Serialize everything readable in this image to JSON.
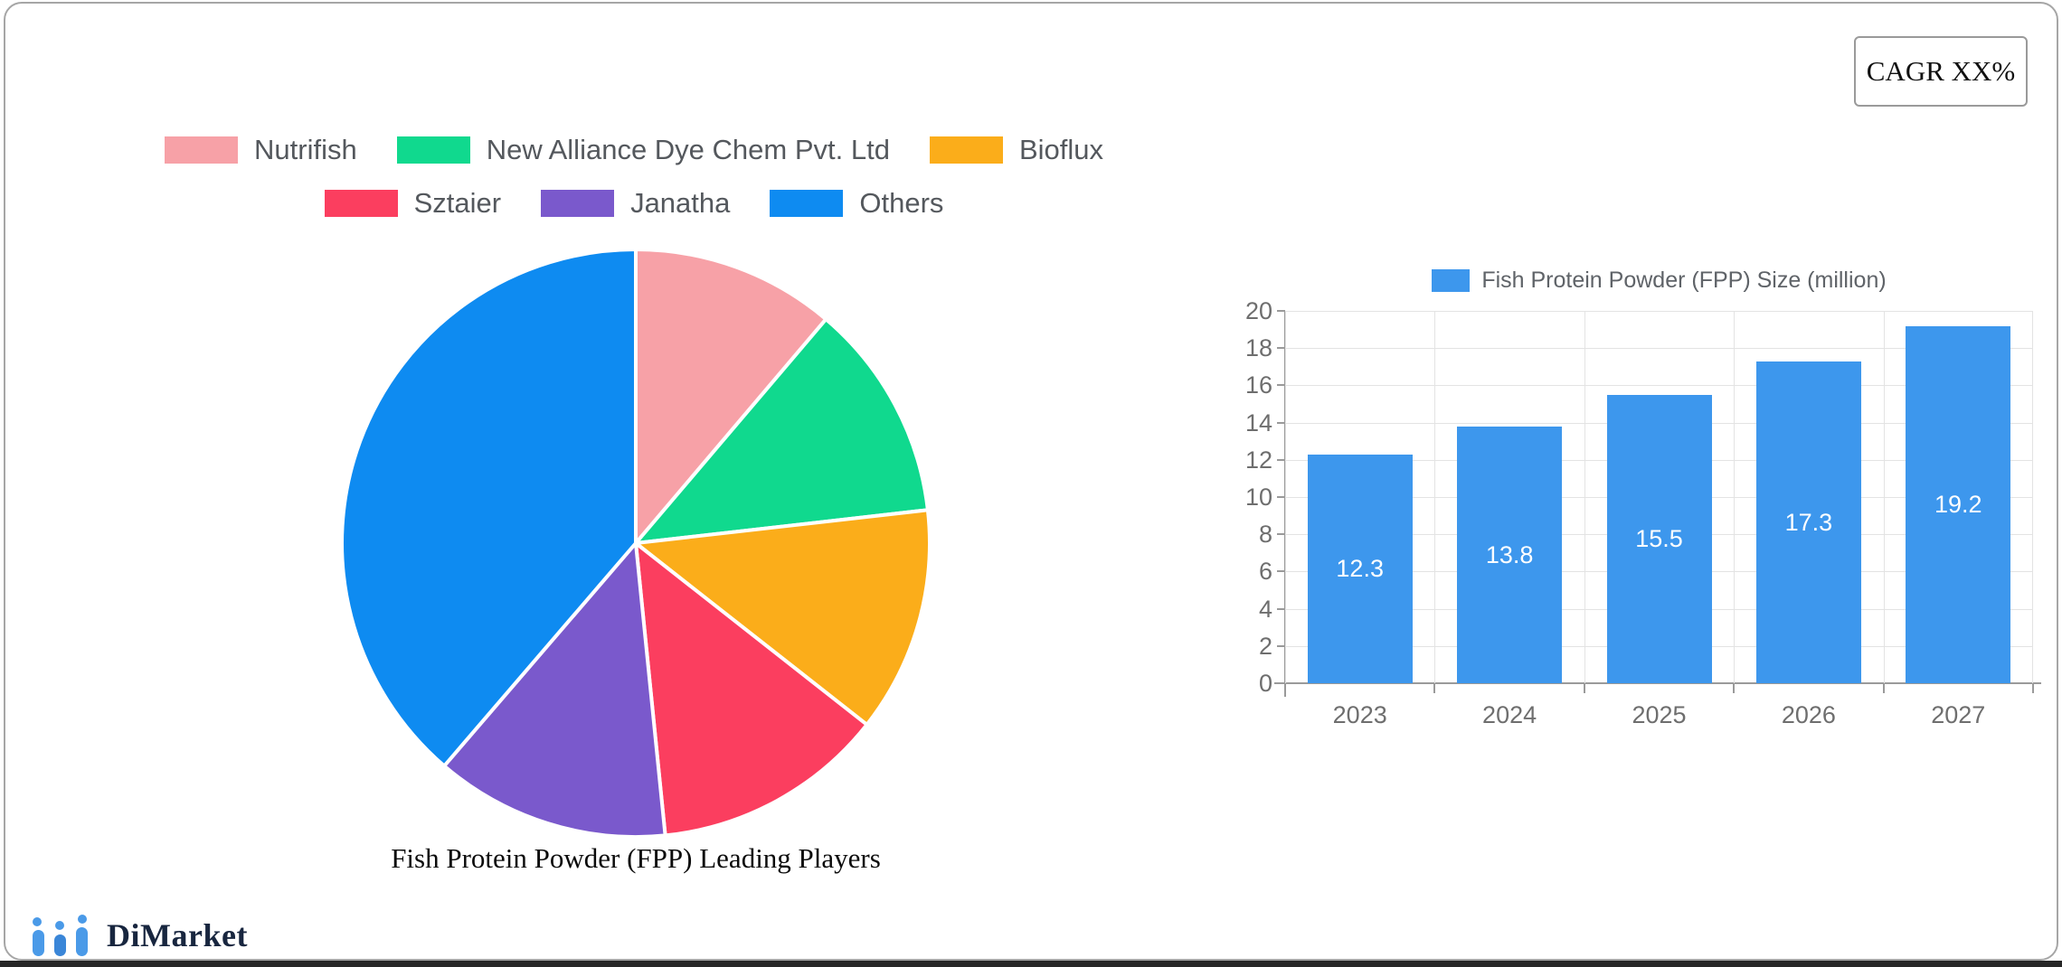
{
  "header": {
    "cagr_label": "CAGR XX%"
  },
  "branding": {
    "logo_text": "DiMarket",
    "logo_icon": "mini-bar-chart-icon",
    "logo_color": "#4a9ae8",
    "text_color": "#18263f"
  },
  "colors": {
    "card_border": "#a6a6a6",
    "bottom_strip": "#262626",
    "grid": "#e3e3e3",
    "axis": "#9a9a9a",
    "tick_text": "#6e6e6e",
    "pie_legend_text": "#54585d",
    "bar_legend_text": "#5f6368"
  },
  "chart_data": [
    {
      "type": "pie",
      "title": "Fish Protein Powder (FPP) Leading Players",
      "labels": [
        "Nutrifish",
        "New Alliance Dye Chem Pvt. Ltd",
        "Bioflux",
        "Sztaier",
        "Janatha",
        "Others"
      ],
      "values_percent": [
        11.2,
        12.0,
        12.4,
        12.8,
        12.9,
        38.7
      ],
      "colors": [
        "#F7A1A7",
        "#10D98E",
        "#FBAD1A",
        "#FB3E5F",
        "#7A59CC",
        "#0E8BF1"
      ],
      "legend_rows": [
        [
          0,
          1,
          2
        ],
        [
          3,
          4,
          5
        ]
      ],
      "start_angle_deg": 0,
      "direction": "clockwise",
      "slice_gap_color": "#ffffff",
      "legend_position": "top"
    },
    {
      "type": "bar",
      "legend_label": "Fish Protein Powder (FPP) Size (million)",
      "categories": [
        "2023",
        "2024",
        "2025",
        "2026",
        "2027"
      ],
      "values": [
        12.3,
        13.8,
        15.5,
        17.3,
        19.2
      ],
      "bar_color": "#3D97ED",
      "value_label_color": "#ffffff",
      "ylim": [
        0,
        20
      ],
      "yticks": [
        0,
        2,
        4,
        6,
        8,
        10,
        12,
        14,
        16,
        18,
        20
      ],
      "grid": true,
      "legend_position": "top"
    }
  ]
}
